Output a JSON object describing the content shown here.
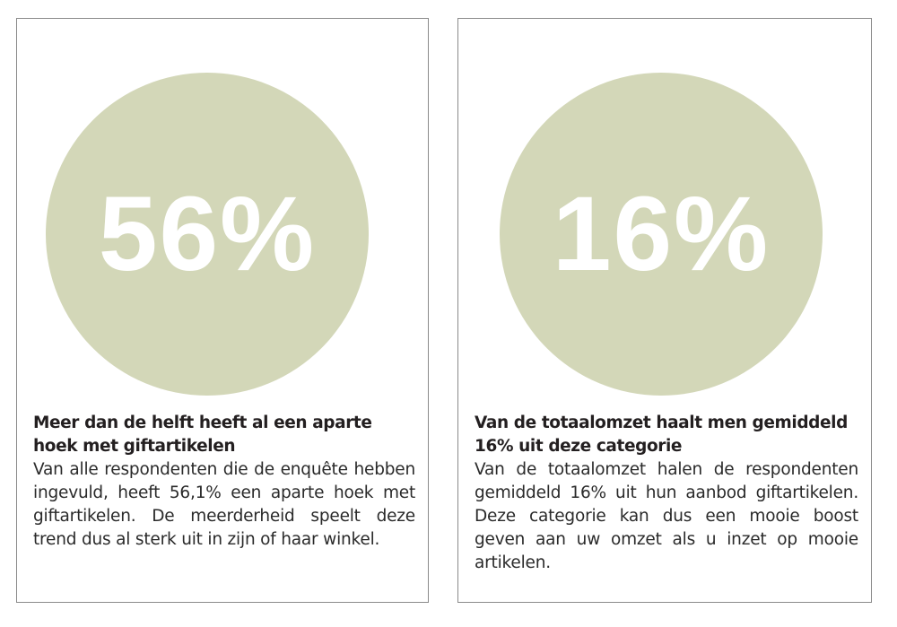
{
  "cards": [
    {
      "percent": "56%",
      "heading": "Meer dan de helft heeft al een aparte hoek met giftartikelen",
      "body": "Van alle respondenten die de enquête hebben ingevuld, heeft 56,1% een aparte hoek met giftartikelen. De meerderheid speelt deze trend dus al sterk uit in zijn of haar winkel."
    },
    {
      "percent": "16%",
      "heading": "Van de totaalomzet haalt men gemiddeld 16% uit deze categorie",
      "body": "Van de totaalomzet halen de respondenten gemiddeld 16% uit hun aanbod giftartikelen. Deze categorie kan dus een mooie boost geven aan uw omzet als u inzet op mooie artikelen."
    }
  ],
  "colors": {
    "circle": "#d3d7b8",
    "border": "#8a8a8a",
    "text": "#231f20"
  }
}
